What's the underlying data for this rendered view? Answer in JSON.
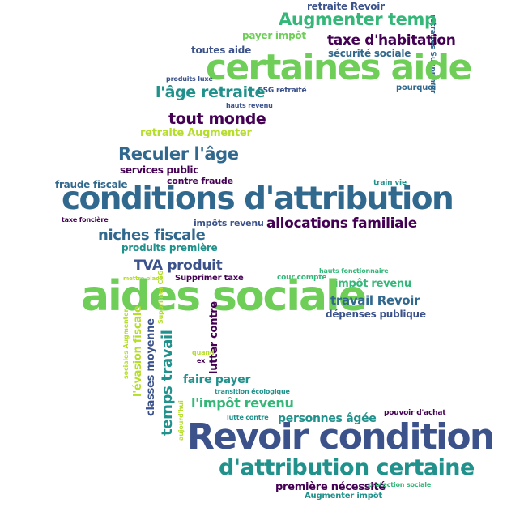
{
  "palette": {
    "dark_purple": "#440154",
    "indigo": "#3b528b",
    "blue": "#31688e",
    "teal": "#21918c",
    "green": "#35b779",
    "light_green": "#6ece58",
    "yellow_green": "#b5de2b",
    "yellow": "#c8e020"
  },
  "words": [
    {
      "text": "retraite Revoir",
      "color": "#3b528b"
    },
    {
      "text": "retraités Supprimer",
      "color": "#31688e"
    },
    {
      "text": "Augmenter temp",
      "color": "#35b779"
    },
    {
      "text": "payer impôt",
      "color": "#6ece58"
    },
    {
      "text": "taxe d'habitation",
      "color": "#440154"
    },
    {
      "text": "toutes aide",
      "color": "#3b528b"
    },
    {
      "text": "sécurité sociale",
      "color": "#31688e"
    },
    {
      "text": "certaines aide",
      "color": "#6ece58"
    },
    {
      "text": "produits luxe",
      "color": "#3b528b"
    },
    {
      "text": "CSG retraité",
      "color": "#3b528b"
    },
    {
      "text": "pourquoi",
      "color": "#31688e"
    },
    {
      "text": "l'âge retraite",
      "color": "#21918c"
    },
    {
      "text": "hauts revenu",
      "color": "#3b528b"
    },
    {
      "text": "tout monde",
      "color": "#440154"
    },
    {
      "text": "retraite Augmenter",
      "color": "#b5de2b"
    },
    {
      "text": "Reculer l'âge",
      "color": "#31688e"
    },
    {
      "text": "services public",
      "color": "#440154"
    },
    {
      "text": "contre fraude",
      "color": "#440154"
    },
    {
      "text": "fraude fiscale",
      "color": "#31688e"
    },
    {
      "text": "train vie",
      "color": "#21918c"
    },
    {
      "text": "conditions d'attribution",
      "color": "#31688e"
    },
    {
      "text": "taxe foncière",
      "color": "#440154"
    },
    {
      "text": "impôts revenu",
      "color": "#3b528b"
    },
    {
      "text": "allocations familiale",
      "color": "#440154"
    },
    {
      "text": "niches fiscale",
      "color": "#31688e"
    },
    {
      "text": "produits première",
      "color": "#21918c"
    },
    {
      "text": "TVA produit",
      "color": "#3b528b"
    },
    {
      "text": "hauts fonctionnaire",
      "color": "#35b779"
    },
    {
      "text": "mettre place",
      "color": "#b5de2b"
    },
    {
      "text": "Supprimer taxe",
      "color": "#440154"
    },
    {
      "text": "cour compte",
      "color": "#35b779"
    },
    {
      "text": "impôt revenu",
      "color": "#35b779"
    },
    {
      "text": "aides sociale",
      "color": "#6ece58"
    },
    {
      "text": "travail Revoir",
      "color": "#31688e"
    },
    {
      "text": "dépenses publique",
      "color": "#3b528b"
    },
    {
      "text": "Supprimer CSG",
      "color": "#b5de2b"
    },
    {
      "text": "sociales Augmenter",
      "color": "#b5de2b"
    },
    {
      "text": "l'évasion fiscale",
      "color": "#b5de2b"
    },
    {
      "text": "classes moyenne",
      "color": "#3b528b"
    },
    {
      "text": "temps travail",
      "color": "#21918c"
    },
    {
      "text": "lutter contre",
      "color": "#440154"
    },
    {
      "text": "quand",
      "color": "#b5de2b"
    },
    {
      "text": "ex",
      "color": "#440154"
    },
    {
      "text": "faire payer",
      "color": "#21918c"
    },
    {
      "text": "transition écologique",
      "color": "#21918c"
    },
    {
      "text": "l'impôt revenu",
      "color": "#35b779"
    },
    {
      "text": "aujourd'hui",
      "color": "#b5de2b"
    },
    {
      "text": "lutte contre",
      "color": "#21918c"
    },
    {
      "text": "personnes âgée",
      "color": "#21918c"
    },
    {
      "text": "pouvoir d'achat",
      "color": "#440154"
    },
    {
      "text": "Revoir condition",
      "color": "#3b528b"
    },
    {
      "text": "d'attribution certaine",
      "color": "#21918c"
    },
    {
      "text": "première nécessité",
      "color": "#440154"
    },
    {
      "text": "protection sociale",
      "color": "#35b779"
    },
    {
      "text": "Augmenter impôt",
      "color": "#21918c"
    }
  ]
}
